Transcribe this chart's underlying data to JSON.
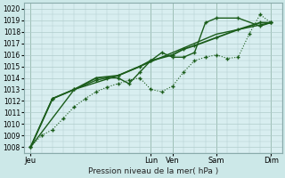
{
  "bg_color": "#cce8e8",
  "plot_bg": "#d8eef0",
  "grid_color": "#b0cccc",
  "line_color": "#1a5c1a",
  "xlabel": "Pression niveau de la mer( hPa )",
  "ylim": [
    1007.5,
    1020.5
  ],
  "yticks": [
    1008,
    1009,
    1010,
    1011,
    1012,
    1013,
    1014,
    1015,
    1016,
    1017,
    1018,
    1019,
    1020
  ],
  "day_labels": [
    "Jeu",
    "Lun",
    "Ven",
    "Sam",
    "Dim"
  ],
  "day_positions": [
    0,
    5.5,
    6.5,
    8.5,
    11
  ],
  "xlim": [
    -0.3,
    11.5
  ],
  "series1_dotted": {
    "x": [
      0,
      0.5,
      1.0,
      1.5,
      2.0,
      2.5,
      3.0,
      3.5,
      4.0,
      4.5,
      5.0,
      5.5,
      6.0,
      6.5,
      7.0,
      7.5,
      8.0,
      8.5,
      9.0,
      9.5,
      10.0,
      10.5,
      11.0
    ],
    "y": [
      1008,
      1009,
      1009.5,
      1010.5,
      1011.5,
      1012.2,
      1012.8,
      1013.2,
      1013.5,
      1013.8,
      1014.0,
      1013.0,
      1012.8,
      1013.3,
      1014.5,
      1015.5,
      1015.8,
      1016.0,
      1015.7,
      1015.8,
      1017.8,
      1019.5,
      1018.8
    ],
    "linestyle": "dotted",
    "linewidth": 0.8,
    "markersize": 2.5,
    "marker": "+"
  },
  "series2": {
    "x": [
      0,
      1.0,
      2.0,
      3.0,
      3.5,
      4.0,
      4.5,
      5.0,
      5.5,
      6.0,
      6.5,
      7.0,
      7.5,
      8.0,
      8.5,
      9.5,
      10.5,
      11.0
    ],
    "y": [
      1008,
      1012.2,
      1013.0,
      1013.8,
      1014.0,
      1014.0,
      1013.5,
      1014.5,
      1015.5,
      1016.2,
      1015.8,
      1015.8,
      1016.2,
      1018.8,
      1019.2,
      1019.2,
      1018.5,
      1018.8
    ],
    "linestyle": "-",
    "linewidth": 1.0,
    "markersize": 2.5,
    "marker": "+"
  },
  "series3": {
    "x": [
      0,
      1.0,
      2.0,
      3.0,
      4.0,
      5.0,
      5.5,
      6.5,
      7.0,
      7.5,
      8.5,
      9.5,
      10.5,
      11.0
    ],
    "y": [
      1008,
      1012.2,
      1013.0,
      1014.0,
      1014.2,
      1015.0,
      1015.5,
      1016.0,
      1016.5,
      1016.8,
      1017.5,
      1018.2,
      1018.8,
      1018.8
    ],
    "linestyle": "-",
    "linewidth": 1.3,
    "markersize": 2.5,
    "marker": "+"
  },
  "series4": {
    "x": [
      0,
      2.0,
      4.0,
      6.5,
      8.5,
      11.0
    ],
    "y": [
      1008,
      1013.0,
      1014.2,
      1016.2,
      1017.8,
      1018.8
    ],
    "linestyle": "-",
    "linewidth": 1.0,
    "markersize": 0,
    "marker": "None"
  }
}
